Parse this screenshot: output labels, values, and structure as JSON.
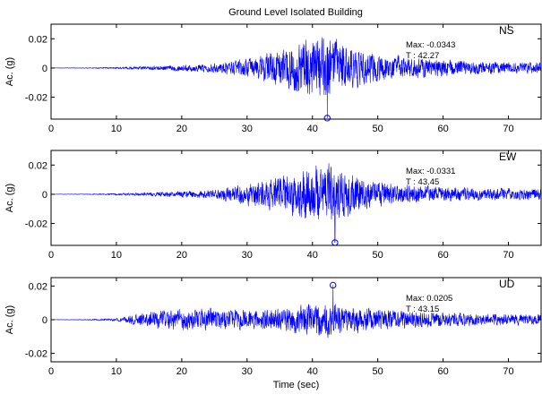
{
  "title": "Ground Level Isolated Building",
  "colors": {
    "trace": "#0000ff",
    "axes": "#000000",
    "background": "#ffffff"
  },
  "chart_data": [
    {
      "type": "line",
      "component": "NS",
      "ylabel": "Ac. (g)",
      "xlabel": "",
      "xlim": [
        0,
        75
      ],
      "ylim": [
        -0.035,
        0.03
      ],
      "xticks": [
        0,
        10,
        20,
        30,
        40,
        50,
        60,
        70
      ],
      "xtick_labels": [
        "0",
        "10",
        "20",
        "30",
        "40",
        "50",
        "60",
        "70"
      ],
      "yticks": [
        0.02,
        0,
        -0.02
      ],
      "ytick_labels": [
        "0.02",
        "0",
        "-0.02"
      ],
      "grid": false,
      "series": [
        {
          "envelope": [
            [
              0,
              0.0001
            ],
            [
              5,
              0.0002
            ],
            [
              10,
              0.0006
            ],
            [
              15,
              0.0012
            ],
            [
              20,
              0.002
            ],
            [
              25,
              0.0028
            ],
            [
              30,
              0.006
            ],
            [
              35,
              0.012
            ],
            [
              38,
              0.018
            ],
            [
              42,
              0.022
            ],
            [
              45,
              0.016
            ],
            [
              48,
              0.011
            ],
            [
              52,
              0.008
            ],
            [
              58,
              0.006
            ],
            [
              65,
              0.0045
            ],
            [
              70,
              0.004
            ],
            [
              75,
              0.0035
            ]
          ]
        }
      ],
      "peak": {
        "label_max": "Max: -0.0343",
        "label_t": "T   : 42.27",
        "max": -0.0343,
        "t": 42.27
      }
    },
    {
      "type": "line",
      "component": "EW",
      "ylabel": "Ac. (g)",
      "xlabel": "",
      "xlim": [
        0,
        75
      ],
      "ylim": [
        -0.035,
        0.03
      ],
      "xticks": [
        0,
        10,
        20,
        30,
        40,
        50,
        60,
        70
      ],
      "xtick_labels": [
        "0",
        "10",
        "20",
        "30",
        "40",
        "50",
        "60",
        "70"
      ],
      "yticks": [
        0.02,
        0,
        -0.02
      ],
      "ytick_labels": [
        "0.02",
        "0",
        "-0.02"
      ],
      "grid": false,
      "series": [
        {
          "envelope": [
            [
              0,
              0.0001
            ],
            [
              5,
              0.0002
            ],
            [
              10,
              0.0006
            ],
            [
              15,
              0.0012
            ],
            [
              20,
              0.002
            ],
            [
              25,
              0.003
            ],
            [
              30,
              0.007
            ],
            [
              35,
              0.012
            ],
            [
              38,
              0.016
            ],
            [
              42,
              0.02
            ],
            [
              45,
              0.016
            ],
            [
              48,
              0.01
            ],
            [
              52,
              0.007
            ],
            [
              58,
              0.005
            ],
            [
              65,
              0.004
            ],
            [
              70,
              0.004
            ],
            [
              75,
              0.0035
            ]
          ]
        }
      ],
      "peak": {
        "label_max": "Max: -0.0331",
        "label_t": "T   : 43.45",
        "max": -0.0331,
        "t": 43.45
      }
    },
    {
      "type": "line",
      "component": "UD",
      "ylabel": "Ac. (g)",
      "xlabel": "Time (sec)",
      "xlim": [
        0,
        75
      ],
      "ylim": [
        -0.025,
        0.025
      ],
      "xticks": [
        0,
        10,
        20,
        30,
        40,
        50,
        60,
        70
      ],
      "xtick_labels": [
        "0",
        "10",
        "20",
        "30",
        "40",
        "50",
        "60",
        "70"
      ],
      "yticks": [
        0.02,
        0,
        -0.02
      ],
      "ytick_labels": [
        "0.02",
        "0",
        "-0.02"
      ],
      "grid": false,
      "series": [
        {
          "envelope": [
            [
              0,
              0.0001
            ],
            [
              5,
              0.0002
            ],
            [
              10,
              0.0008
            ],
            [
              13,
              0.003
            ],
            [
              16,
              0.005
            ],
            [
              20,
              0.006
            ],
            [
              25,
              0.006
            ],
            [
              30,
              0.0055
            ],
            [
              35,
              0.006
            ],
            [
              38,
              0.008
            ],
            [
              42,
              0.01
            ],
            [
              45,
              0.008
            ],
            [
              50,
              0.006
            ],
            [
              55,
              0.005
            ],
            [
              60,
              0.004
            ],
            [
              65,
              0.0035
            ],
            [
              70,
              0.003
            ],
            [
              75,
              0.003
            ]
          ]
        }
      ],
      "peak": {
        "label_max": "Max: 0.0205",
        "label_t": "T   : 43.15",
        "max": 0.0205,
        "t": 43.15
      }
    }
  ]
}
